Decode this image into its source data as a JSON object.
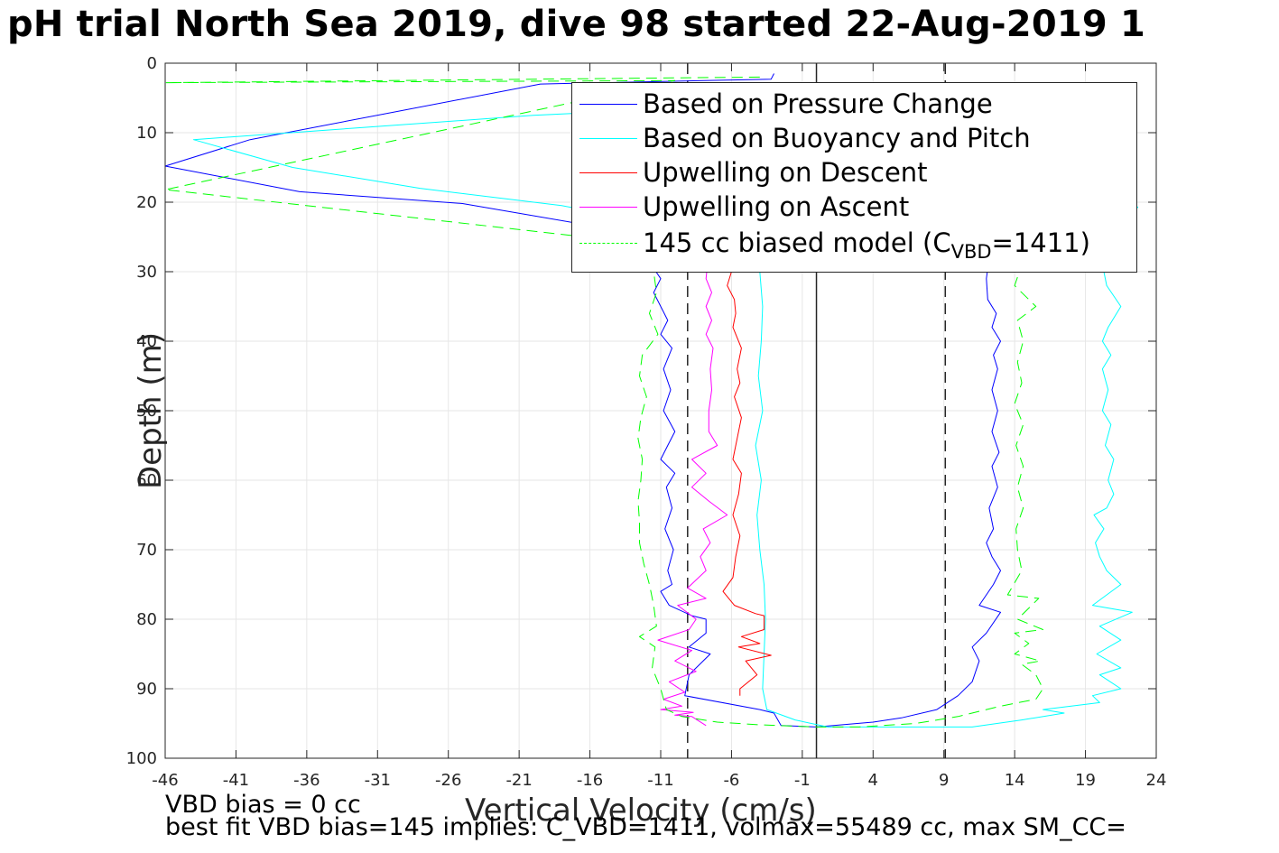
{
  "title": "pH trial North Sea 2019, dive 98 started 22-Aug-2019 1",
  "notes": {
    "line1": "VBD bias = 0 cc",
    "line2": "best fit VBD bias=145 implies: C_VBD=1411, volmax=55489 cc, max SM_CC="
  },
  "legend": {
    "items": [
      {
        "label": "Based on Pressure Change",
        "color": "#0000ff",
        "dash": "solid"
      },
      {
        "label": "Based on Buoyancy and Pitch",
        "color": "#00ffff",
        "dash": "solid"
      },
      {
        "label": "Upwelling on Descent",
        "color": "#ff0000",
        "dash": "solid"
      },
      {
        "label": "Upwelling on Ascent",
        "color": "#ff00ff",
        "dash": "solid"
      },
      {
        "label_main": "145 cc biased model (C",
        "label_sub": "VBD",
        "label_tail": "=1411)",
        "color": "#00ff00",
        "dash": "dashed"
      }
    ]
  },
  "chart_data": {
    "type": "line",
    "title": "pH trial North Sea 2019, dive 98 started 22-Aug-2019 1",
    "xlabel": "Vertical Velocity (cm/s)",
    "ylabel": "Depth (m)",
    "xlim": [
      -46,
      24
    ],
    "ylim": [
      0,
      100
    ],
    "y_reversed": true,
    "x_ticks": [
      -46,
      -41,
      -36,
      -31,
      -26,
      -21,
      -16,
      -11,
      -6,
      -1,
      4,
      9,
      14,
      19,
      24
    ],
    "y_ticks": [
      0,
      10,
      20,
      30,
      40,
      50,
      60,
      70,
      80,
      90,
      100
    ],
    "grid": true,
    "legend_position": "top-right",
    "reference_lines": [
      {
        "x": -9.1,
        "style": "dashed",
        "color": "#262626"
      },
      {
        "x": 0,
        "style": "solid",
        "color": "#262626"
      },
      {
        "x": 9.1,
        "style": "dashed",
        "color": "#262626"
      }
    ],
    "series": [
      {
        "name": "Based on Pressure Change",
        "color": "#0000ff",
        "dash": "solid",
        "points": [
          [
            -3,
            1.5
          ],
          [
            -3.2,
            2.3
          ],
          [
            -19.5,
            3
          ],
          [
            -40,
            11
          ],
          [
            -46,
            14.8
          ],
          [
            -36.5,
            18.5
          ],
          [
            -25,
            20.2
          ],
          [
            -17,
            23
          ],
          [
            -12,
            28
          ],
          [
            -11,
            31
          ],
          [
            -11.5,
            33
          ],
          [
            -11,
            35
          ],
          [
            -10.5,
            37
          ],
          [
            -11,
            39
          ],
          [
            -10.2,
            41
          ],
          [
            -10.8,
            44
          ],
          [
            -10.3,
            47
          ],
          [
            -10.8,
            50
          ],
          [
            -10,
            53
          ],
          [
            -10.5,
            55
          ],
          [
            -11,
            57
          ],
          [
            -10,
            59
          ],
          [
            -10.6,
            61
          ],
          [
            -10.2,
            64
          ],
          [
            -10.7,
            67
          ],
          [
            -10.1,
            70
          ],
          [
            -10.5,
            73
          ],
          [
            -10.2,
            75
          ],
          [
            -11,
            76
          ],
          [
            -10.4,
            78
          ],
          [
            -8.8,
            79.5
          ],
          [
            -7.8,
            80
          ],
          [
            -7.8,
            82
          ],
          [
            -9,
            84
          ],
          [
            -7.5,
            85
          ],
          [
            -9,
            88
          ],
          [
            -9.3,
            91
          ],
          [
            -4,
            93
          ],
          [
            -3,
            93.5
          ],
          [
            -2.5,
            95.3
          ],
          [
            0,
            95.5
          ],
          [
            4,
            94.8
          ],
          [
            6,
            94.2
          ],
          [
            8.5,
            93
          ],
          [
            10,
            91
          ],
          [
            11,
            89
          ],
          [
            11.5,
            86
          ],
          [
            11,
            84
          ],
          [
            12,
            82
          ],
          [
            13,
            79
          ],
          [
            11.5,
            78
          ],
          [
            12.5,
            75
          ],
          [
            13,
            73
          ],
          [
            12.4,
            71
          ],
          [
            12,
            69
          ],
          [
            12.5,
            67
          ],
          [
            12.2,
            64
          ],
          [
            12.8,
            61
          ],
          [
            12.4,
            58
          ],
          [
            12.9,
            56
          ],
          [
            12.4,
            53
          ],
          [
            12.8,
            50
          ],
          [
            12.4,
            47
          ],
          [
            12.8,
            44
          ],
          [
            12.5,
            42
          ],
          [
            13,
            40
          ],
          [
            12.4,
            38
          ],
          [
            12.7,
            36
          ],
          [
            12.1,
            34
          ],
          [
            12,
            31
          ],
          [
            12.2,
            28
          ]
        ]
      },
      {
        "name": "Based on Buoyancy and Pitch",
        "color": "#00ffff",
        "dash": "solid",
        "points": [
          [
            -4.5,
            6
          ],
          [
            -20,
            7.5
          ],
          [
            -44,
            11
          ],
          [
            -37,
            15
          ],
          [
            -28,
            18
          ],
          [
            -18,
            20.5
          ],
          [
            -14,
            22
          ],
          [
            -13,
            25
          ],
          [
            -4,
            30
          ],
          [
            -3.8,
            35
          ],
          [
            -3.9,
            40
          ],
          [
            -4.1,
            45
          ],
          [
            -3.8,
            50
          ],
          [
            -4.3,
            55
          ],
          [
            -3.9,
            60
          ],
          [
            -4.2,
            65
          ],
          [
            -4.0,
            70
          ],
          [
            -3.7,
            75
          ],
          [
            -3.6,
            80
          ],
          [
            -3.7,
            85
          ],
          [
            -3.8,
            90
          ],
          [
            -3.5,
            93
          ],
          [
            -1.5,
            94.5
          ],
          [
            0.8,
            95.5
          ],
          [
            3,
            95.5
          ],
          [
            11,
            95.5
          ],
          [
            14.5,
            94.5
          ],
          [
            17.5,
            93.5
          ],
          [
            16,
            93
          ],
          [
            20,
            92
          ],
          [
            19.5,
            91
          ],
          [
            21.5,
            90
          ],
          [
            20,
            88
          ],
          [
            21.5,
            87
          ],
          [
            19.8,
            85
          ],
          [
            21.5,
            83
          ],
          [
            20,
            81
          ],
          [
            22.3,
            79
          ],
          [
            19.5,
            78
          ],
          [
            21.5,
            75
          ],
          [
            20.5,
            73
          ],
          [
            20,
            71
          ],
          [
            19.7,
            69
          ],
          [
            20.3,
            67
          ],
          [
            19.6,
            65
          ],
          [
            20.5,
            64
          ],
          [
            21.0,
            62
          ],
          [
            20.6,
            60
          ],
          [
            21.0,
            57
          ],
          [
            20.4,
            55
          ],
          [
            20.8,
            52
          ],
          [
            20.2,
            50
          ],
          [
            20.6,
            47
          ],
          [
            20.2,
            44
          ],
          [
            20.8,
            42
          ],
          [
            20.2,
            40
          ],
          [
            20.6,
            38
          ],
          [
            21.5,
            35
          ],
          [
            20.5,
            32
          ],
          [
            20.2,
            29
          ],
          [
            21.0,
            26
          ],
          [
            22.7,
            20.7
          ],
          [
            21.5,
            20.3
          ],
          [
            18.5,
            3
          ]
        ]
      },
      {
        "name": "Upwelling on Descent",
        "color": "#ff0000",
        "dash": "solid",
        "points": [
          [
            -6,
            30
          ],
          [
            -6.3,
            32
          ],
          [
            -5.8,
            34
          ],
          [
            -5.7,
            36
          ],
          [
            -5.9,
            38
          ],
          [
            -5.3,
            41
          ],
          [
            -5.6,
            44
          ],
          [
            -5.4,
            46
          ],
          [
            -5.8,
            48
          ],
          [
            -5.3,
            51
          ],
          [
            -5.6,
            54
          ],
          [
            -5.9,
            57
          ],
          [
            -5.3,
            59
          ],
          [
            -5.5,
            62
          ],
          [
            -5.9,
            65
          ],
          [
            -5.4,
            68
          ],
          [
            -5.7,
            71
          ],
          [
            -5.9,
            74
          ],
          [
            -6.6,
            76
          ],
          [
            -5.8,
            78
          ],
          [
            -4.3,
            79.2
          ],
          [
            -3.7,
            79.5
          ],
          [
            -3.7,
            81.5
          ],
          [
            -5.3,
            82.5
          ],
          [
            -4,
            83.5
          ],
          [
            -5.5,
            84
          ],
          [
            -3.2,
            85.2
          ],
          [
            -5,
            86
          ],
          [
            -4.2,
            88
          ],
          [
            -5.4,
            90
          ],
          [
            -5.4,
            91
          ]
        ]
      },
      {
        "name": "Upwelling on Ascent",
        "color": "#ff00ff",
        "dash": "solid",
        "points": [
          [
            -7.8,
            95.3
          ],
          [
            -8.8,
            94
          ],
          [
            -10,
            93.8
          ],
          [
            -8.7,
            93.4
          ],
          [
            -11,
            93
          ],
          [
            -9.5,
            92.5
          ],
          [
            -10.8,
            91.5
          ],
          [
            -9.3,
            90.5
          ],
          [
            -10.4,
            89
          ],
          [
            -8.5,
            87.5
          ],
          [
            -10,
            86
          ],
          [
            -8.8,
            84.5
          ],
          [
            -11.2,
            83
          ],
          [
            -9,
            81.5
          ],
          [
            -8.5,
            80
          ],
          [
            -9.8,
            78
          ],
          [
            -7.8,
            77
          ],
          [
            -9.1,
            75.5
          ],
          [
            -7.8,
            73
          ],
          [
            -8.2,
            71
          ],
          [
            -7.5,
            69
          ],
          [
            -8,
            67
          ],
          [
            -6.3,
            65
          ],
          [
            -7.6,
            63
          ],
          [
            -8.8,
            61
          ],
          [
            -7.8,
            59
          ],
          [
            -8.8,
            57
          ],
          [
            -7.0,
            55
          ],
          [
            -7.6,
            53
          ],
          [
            -7.6,
            50
          ],
          [
            -7.4,
            47
          ],
          [
            -7.5,
            44
          ],
          [
            -7.3,
            41
          ],
          [
            -7.8,
            39
          ],
          [
            -7.4,
            37
          ],
          [
            -7.8,
            35
          ],
          [
            -7.4,
            33
          ],
          [
            -7.8,
            31
          ],
          [
            -7.7,
            29
          ]
        ]
      },
      {
        "name": "145 cc biased model (C_VBD=1411)",
        "color": "#00ff00",
        "dash": "dashed",
        "points": [
          [
            -4,
            2
          ],
          [
            -46,
            2.8
          ],
          [
            -10,
            2.5
          ],
          [
            -46,
            18.2
          ],
          [
            -12,
            26
          ],
          [
            -11.5,
            30
          ],
          [
            -11.3,
            33
          ],
          [
            -11.8,
            36
          ],
          [
            -11.2,
            39
          ],
          [
            -12.3,
            42
          ],
          [
            -12.5,
            45
          ],
          [
            -12.0,
            48
          ],
          [
            -12.4,
            51
          ],
          [
            -12.6,
            54
          ],
          [
            -12.3,
            57
          ],
          [
            -12.4,
            60
          ],
          [
            -12.6,
            63
          ],
          [
            -12.5,
            66
          ],
          [
            -12.5,
            69
          ],
          [
            -12.2,
            72
          ],
          [
            -11.8,
            75
          ],
          [
            -11.5,
            78
          ],
          [
            -11.3,
            81
          ],
          [
            -12.5,
            82.5
          ],
          [
            -11.4,
            84
          ],
          [
            -11.6,
            87
          ],
          [
            -11.0,
            90
          ],
          [
            -10.6,
            93
          ],
          [
            -9.5,
            94
          ],
          [
            -7,
            94.8
          ],
          [
            -4,
            95.2
          ],
          [
            0,
            95.5
          ],
          [
            3,
            95.5
          ],
          [
            7,
            95
          ],
          [
            10,
            94
          ],
          [
            13,
            92.5
          ],
          [
            15.5,
            91.5
          ],
          [
            16,
            90
          ],
          [
            15.5,
            88
          ],
          [
            14.5,
            86.5
          ],
          [
            15.8,
            86
          ],
          [
            14,
            85
          ],
          [
            15,
            83.5
          ],
          [
            14,
            82
          ],
          [
            16,
            81.5
          ],
          [
            14.2,
            80
          ],
          [
            15.7,
            77
          ],
          [
            13.5,
            76.5
          ],
          [
            14.5,
            73
          ],
          [
            14.2,
            70
          ],
          [
            14.1,
            67
          ],
          [
            14.6,
            64
          ],
          [
            14.2,
            61
          ],
          [
            14.6,
            58
          ],
          [
            14.1,
            55
          ],
          [
            14.6,
            52
          ],
          [
            14.0,
            49
          ],
          [
            14.5,
            46
          ],
          [
            14.2,
            43
          ],
          [
            14.6,
            40
          ],
          [
            14.2,
            37
          ],
          [
            15.5,
            35
          ],
          [
            14,
            32
          ],
          [
            14.5,
            29
          ]
        ]
      }
    ]
  }
}
